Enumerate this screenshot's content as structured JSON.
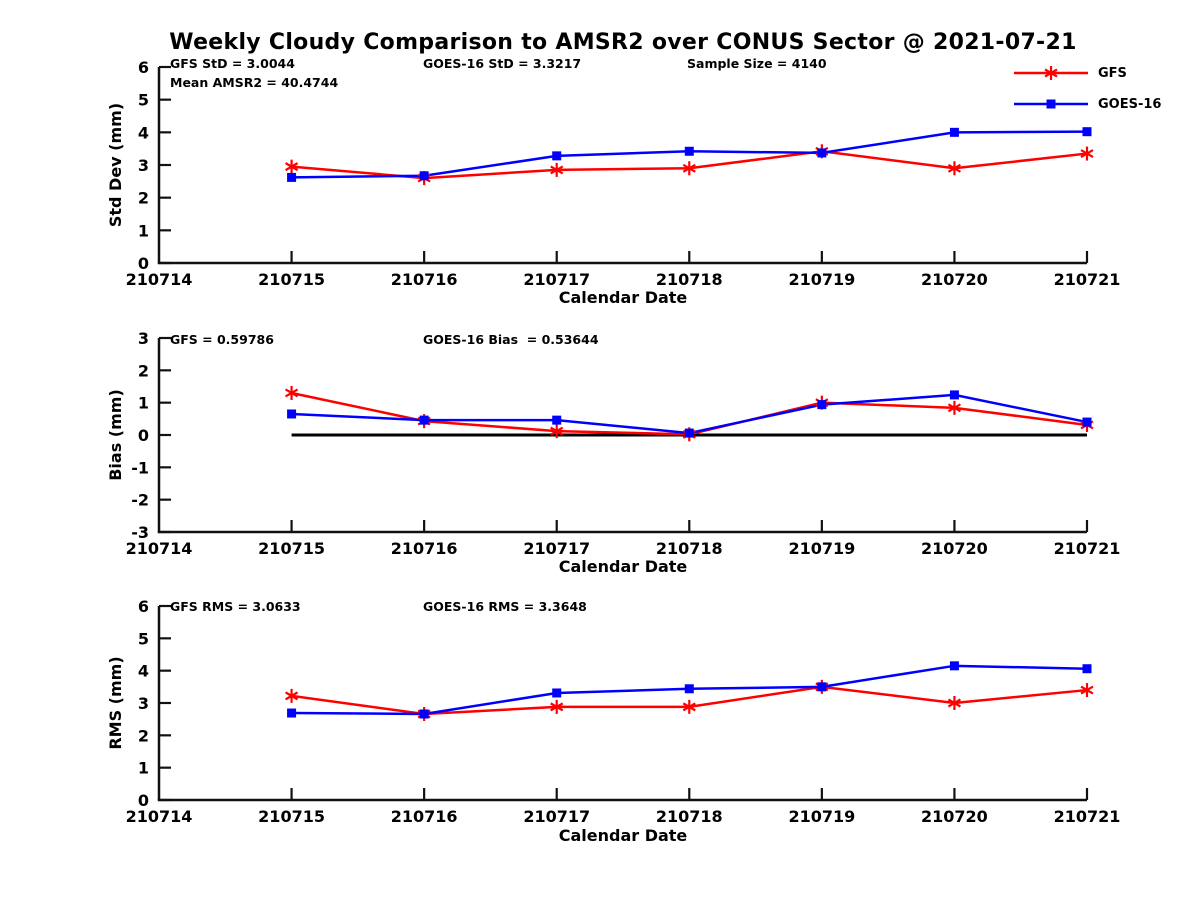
{
  "title": "Weekly Cloudy Comparison to AMSR2 over CONUS Sector @ 2021-07-21",
  "colors": {
    "gfs": "#ff0000",
    "goes16": "#0000ff",
    "axis": "#111111",
    "zero_line": "#000000",
    "text": "#000000"
  },
  "legend": {
    "position": "top-right",
    "items": [
      {
        "label": "GFS",
        "color": "#ff0000",
        "marker": "asterisk"
      },
      {
        "label": "GOES-16",
        "color": "#0000ff",
        "marker": "square"
      }
    ]
  },
  "x_categories": [
    "210714",
    "210715",
    "210716",
    "210717",
    "210718",
    "210719",
    "210720",
    "210721"
  ],
  "chart_data": [
    {
      "type": "line",
      "ylabel": "Std Dev (mm)",
      "xlabel": "Calendar Date",
      "ylim": [
        0,
        6
      ],
      "yticks": [
        0,
        1,
        2,
        3,
        4,
        5,
        6
      ],
      "grid": false,
      "x": [
        "210715",
        "210716",
        "210717",
        "210718",
        "210719",
        "210720",
        "210721"
      ],
      "annotations": [
        {
          "text": "GFS StD = 3.0044"
        },
        {
          "text": "Mean AMSR2 = 40.4744"
        },
        {
          "text": "GOES-16 StD = 3.3217"
        },
        {
          "text": "Sample Size = 4140"
        }
      ],
      "series": [
        {
          "name": "GFS",
          "color": "#ff0000",
          "marker": "asterisk",
          "values": [
            2.95,
            2.6,
            2.85,
            2.9,
            3.42,
            2.9,
            3.35
          ]
        },
        {
          "name": "GOES-16",
          "color": "#0000ff",
          "marker": "square",
          "values": [
            2.62,
            2.67,
            3.28,
            3.42,
            3.37,
            4.0,
            4.02
          ]
        }
      ]
    },
    {
      "type": "line",
      "ylabel": "Bias (mm)",
      "xlabel": "Calendar Date",
      "ylim": [
        -3,
        3
      ],
      "yticks": [
        -3,
        -2,
        -1,
        0,
        1,
        2,
        3
      ],
      "grid": false,
      "zero_line": true,
      "x": [
        "210715",
        "210716",
        "210717",
        "210718",
        "210719",
        "210720",
        "210721"
      ],
      "annotations": [
        {
          "text": "GFS = 0.59786"
        },
        {
          "text": "GOES-16 Bias  = 0.53644"
        }
      ],
      "series": [
        {
          "name": "GFS",
          "color": "#ff0000",
          "marker": "asterisk",
          "values": [
            1.3,
            0.43,
            0.12,
            0.02,
            1.0,
            0.84,
            0.31
          ]
        },
        {
          "name": "GOES-16",
          "color": "#0000ff",
          "marker": "square",
          "values": [
            0.65,
            0.46,
            0.46,
            0.06,
            0.94,
            1.24,
            0.4
          ]
        }
      ]
    },
    {
      "type": "line",
      "ylabel": "RMS (mm)",
      "xlabel": "Calendar Date",
      "ylim": [
        0,
        6
      ],
      "yticks": [
        0,
        1,
        2,
        3,
        4,
        5,
        6
      ],
      "grid": false,
      "x": [
        "210715",
        "210716",
        "210717",
        "210718",
        "210719",
        "210720",
        "210721"
      ],
      "annotations": [
        {
          "text": "GFS RMS = 3.0633"
        },
        {
          "text": "GOES-16 RMS = 3.3648"
        }
      ],
      "series": [
        {
          "name": "GFS",
          "color": "#ff0000",
          "marker": "asterisk",
          "values": [
            3.22,
            2.66,
            2.88,
            2.88,
            3.5,
            3.0,
            3.4
          ]
        },
        {
          "name": "GOES-16",
          "color": "#0000ff",
          "marker": "square",
          "values": [
            2.69,
            2.66,
            3.31,
            3.44,
            3.5,
            4.15,
            4.06
          ]
        }
      ]
    }
  ]
}
